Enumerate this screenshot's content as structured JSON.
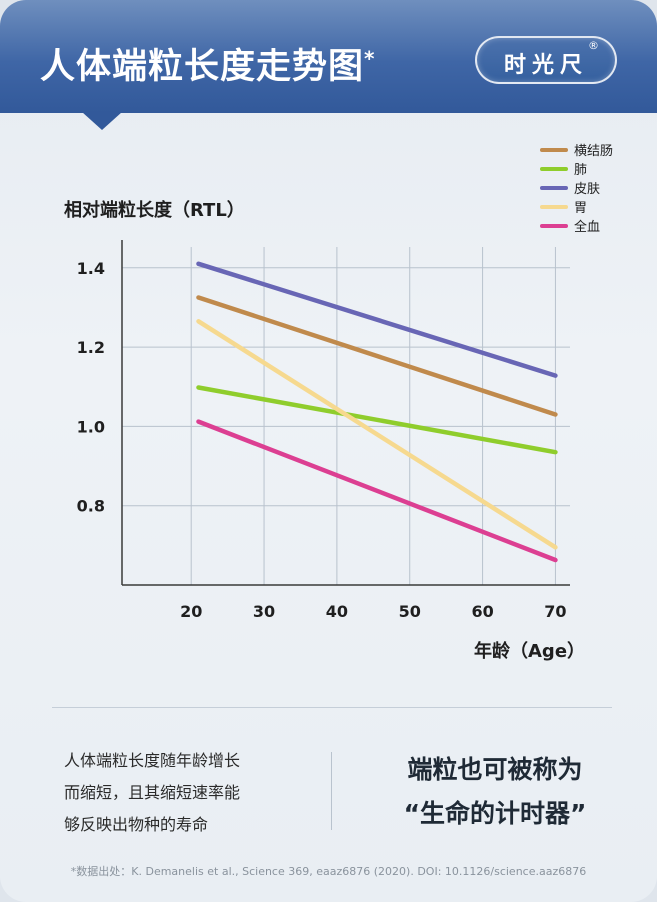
{
  "header": {
    "title": "人体端粒长度走势图",
    "title_mark": "*",
    "brand": "时光尺",
    "brand_mark": "®"
  },
  "chart_data": {
    "type": "line",
    "ylabel": "相对端粒长度（RTL）",
    "xlabel": "年龄（Age）",
    "x_ticks": [
      20,
      30,
      40,
      50,
      60,
      70
    ],
    "y_ticks": [
      "0.8",
      "1.0",
      "1.2",
      "1.4"
    ],
    "xlim": [
      10.5,
      72
    ],
    "ylim": [
      0.6,
      1.47
    ],
    "grid": true,
    "legend_position": "top-right",
    "series": [
      {
        "name": "横结肠",
        "color": "#c08a4c",
        "x": [
          21,
          70
        ],
        "y": [
          1.325,
          1.03
        ]
      },
      {
        "name": "肺",
        "color": "#8fcd2c",
        "x": [
          21,
          70
        ],
        "y": [
          1.098,
          0.935
        ]
      },
      {
        "name": "皮肤",
        "color": "#6866b5",
        "x": [
          21,
          70
        ],
        "y": [
          1.41,
          1.128
        ]
      },
      {
        "name": "胃",
        "color": "#f6d98f",
        "x": [
          21,
          70
        ],
        "y": [
          1.265,
          0.695
        ]
      },
      {
        "name": "全血",
        "color": "#dc3f92",
        "x": [
          21,
          70
        ],
        "y": [
          1.012,
          0.663
        ]
      }
    ]
  },
  "description": {
    "lines": [
      "人体端粒长度随年龄增长",
      "而缩短，且其缩短速率能",
      "够反映出物种的寿命"
    ]
  },
  "callout": {
    "line1": "端粒也可被称为",
    "line2": "“生命的计时器”"
  },
  "footnote": "*数据出处：K. Demanelis et al., Science 369, eaaz6876 (2020). DOI: 10.1126/science.aaz6876"
}
